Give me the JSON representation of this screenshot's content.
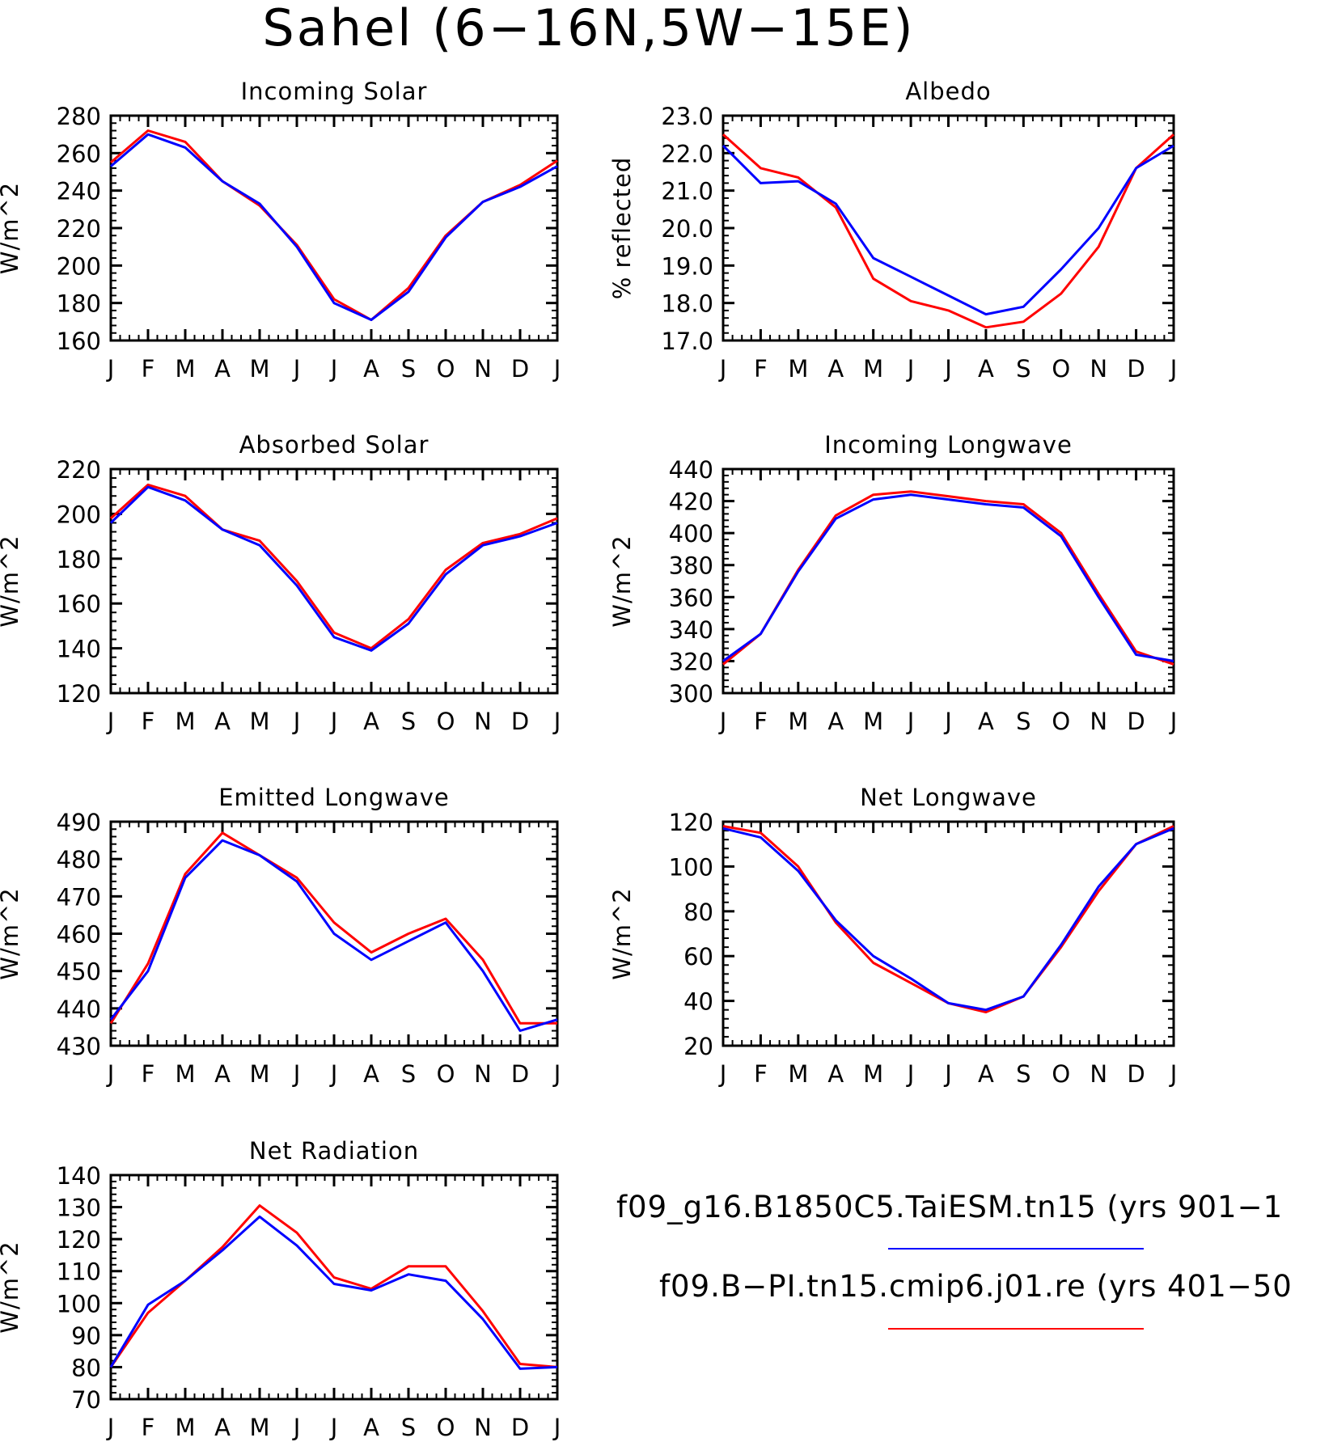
{
  "figure": {
    "title": "Sahel (6−16N,5W−15E)"
  },
  "legend": [
    {
      "label": "f09_g16.B1850C5.TaiESM.tn15 (yrs 901−1",
      "color": "#0000ff"
    },
    {
      "label": "f09.B−PI.tn15.cmip6.j01.re (yrs 401−50",
      "color": "#ff0000"
    }
  ],
  "chart_data": [
    {
      "type": "line",
      "title": "Incoming Solar",
      "ylabel": "W/m^2",
      "categories": [
        "J",
        "F",
        "M",
        "A",
        "M",
        "J",
        "J",
        "A",
        "S",
        "O",
        "N",
        "D",
        "J"
      ],
      "ylim": [
        160,
        280
      ],
      "yticks": [
        "160",
        "180",
        "200",
        "220",
        "240",
        "260",
        "280"
      ],
      "series": [
        {
          "color": "#0000ff",
          "values": [
            253,
            270,
            263,
            245,
            233,
            210,
            180,
            171,
            186,
            215,
            234,
            242,
            253
          ]
        },
        {
          "color": "#ff0000",
          "values": [
            255,
            272,
            266,
            245,
            232,
            211,
            182,
            171,
            188,
            216,
            234,
            243,
            256
          ]
        }
      ]
    },
    {
      "type": "line",
      "title": "Albedo",
      "ylabel": "% reflected",
      "categories": [
        "J",
        "F",
        "M",
        "A",
        "M",
        "J",
        "J",
        "A",
        "S",
        "O",
        "N",
        "D",
        "J"
      ],
      "ylim": [
        17.0,
        23.0
      ],
      "yticks": [
        "17.0",
        "18.0",
        "19.0",
        "20.0",
        "21.0",
        "22.0",
        "23.0"
      ],
      "series": [
        {
          "color": "#0000ff",
          "values": [
            22.2,
            21.2,
            21.25,
            20.65,
            19.2,
            18.7,
            18.2,
            17.7,
            17.9,
            18.9,
            20.0,
            21.6,
            22.2
          ]
        },
        {
          "color": "#ff0000",
          "values": [
            22.5,
            21.6,
            21.35,
            20.55,
            18.65,
            18.05,
            17.8,
            17.35,
            17.5,
            18.25,
            19.5,
            21.6,
            22.5
          ]
        }
      ]
    },
    {
      "type": "line",
      "title": "Absorbed Solar",
      "ylabel": "W/m^2",
      "categories": [
        "J",
        "F",
        "M",
        "A",
        "M",
        "J",
        "J",
        "A",
        "S",
        "O",
        "N",
        "D",
        "J"
      ],
      "ylim": [
        120,
        220
      ],
      "yticks": [
        "120",
        "140",
        "160",
        "180",
        "200",
        "220"
      ],
      "series": [
        {
          "color": "#0000ff",
          "values": [
            196,
            212,
            206,
            193,
            186,
            168,
            145,
            139,
            151,
            173,
            186,
            190,
            196
          ]
        },
        {
          "color": "#ff0000",
          "values": [
            198,
            213,
            208,
            193,
            188,
            170,
            147,
            140,
            153,
            175,
            187,
            191,
            198
          ]
        }
      ]
    },
    {
      "type": "line",
      "title": "Incoming Longwave",
      "ylabel": "W/m^2",
      "categories": [
        "J",
        "F",
        "M",
        "A",
        "M",
        "J",
        "J",
        "A",
        "S",
        "O",
        "N",
        "D",
        "J"
      ],
      "ylim": [
        300,
        440
      ],
      "yticks": [
        "300",
        "320",
        "340",
        "360",
        "380",
        "400",
        "420",
        "440"
      ],
      "series": [
        {
          "color": "#0000ff",
          "values": [
            320,
            337,
            376,
            409,
            421,
            424,
            421,
            418,
            416,
            398,
            360,
            324,
            320
          ]
        },
        {
          "color": "#ff0000",
          "values": [
            318,
            337,
            377,
            411,
            424,
            426,
            423,
            420,
            418,
            400,
            362,
            326,
            318
          ]
        }
      ]
    },
    {
      "type": "line",
      "title": "Emitted Longwave",
      "ylabel": "W/m^2",
      "categories": [
        "J",
        "F",
        "M",
        "A",
        "M",
        "J",
        "J",
        "A",
        "S",
        "O",
        "N",
        "D",
        "J"
      ],
      "ylim": [
        430,
        490
      ],
      "yticks": [
        "430",
        "440",
        "450",
        "460",
        "470",
        "480",
        "490"
      ],
      "series": [
        {
          "color": "#0000ff",
          "values": [
            437,
            450,
            475,
            485,
            481,
            474,
            460,
            453,
            458,
            463,
            450,
            434,
            437
          ]
        },
        {
          "color": "#ff0000",
          "values": [
            436,
            452,
            476,
            487,
            481,
            475,
            463,
            455,
            460,
            464,
            453,
            436,
            436
          ]
        }
      ]
    },
    {
      "type": "line",
      "title": "Net Longwave",
      "ylabel": "W/m^2",
      "categories": [
        "J",
        "F",
        "M",
        "A",
        "M",
        "J",
        "J",
        "A",
        "S",
        "O",
        "N",
        "D",
        "J"
      ],
      "ylim": [
        20,
        120
      ],
      "yticks": [
        "20",
        "40",
        "60",
        "80",
        "100",
        "120"
      ],
      "series": [
        {
          "color": "#0000ff",
          "values": [
            117,
            113,
            98,
            76,
            60,
            50,
            39,
            36,
            42,
            65,
            91,
            110,
            117
          ]
        },
        {
          "color": "#ff0000",
          "values": [
            118,
            115,
            100,
            75,
            57,
            48,
            39,
            35,
            42,
            64,
            89,
            110,
            118
          ]
        }
      ]
    },
    {
      "type": "line",
      "title": "Net Radiation",
      "ylabel": "W/m^2",
      "categories": [
        "J",
        "F",
        "M",
        "A",
        "M",
        "J",
        "J",
        "A",
        "S",
        "O",
        "N",
        "D",
        "J"
      ],
      "ylim": [
        70,
        140
      ],
      "yticks": [
        "70",
        "80",
        "90",
        "100",
        "110",
        "120",
        "130",
        "140"
      ],
      "series": [
        {
          "color": "#0000ff",
          "values": [
            80,
            99.5,
            107,
            116.5,
            127,
            118,
            106,
            104,
            109,
            107,
            95,
            79.5,
            80
          ]
        },
        {
          "color": "#ff0000",
          "values": [
            80,
            97,
            107,
            117.5,
            130.5,
            122,
            108,
            104.5,
            111.5,
            111.5,
            97.5,
            81,
            80
          ]
        }
      ]
    }
  ]
}
